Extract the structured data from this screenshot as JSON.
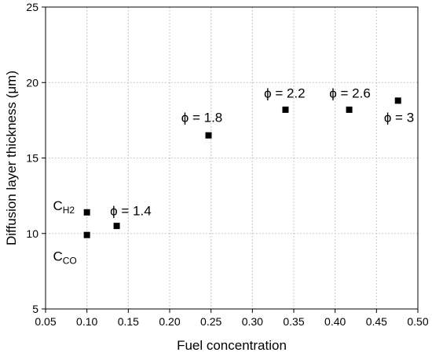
{
  "chart_data": {
    "type": "scatter",
    "xlabel": "Fuel concentration",
    "ylabel": "Diffusion layer thickness (μm)",
    "xlim": [
      0.05,
      0.5
    ],
    "ylim": [
      5,
      25
    ],
    "xticks": [
      "0.05",
      "0.10",
      "0.15",
      "0.20",
      "0.25",
      "0.30",
      "0.35",
      "0.40",
      "0.45",
      "0.50"
    ],
    "yticks": [
      "5",
      "10",
      "15",
      "20",
      "25"
    ],
    "grid": true,
    "points": [
      {
        "x": 0.1,
        "y": 11.4
      },
      {
        "x": 0.1,
        "y": 9.9
      },
      {
        "x": 0.136,
        "y": 10.5
      },
      {
        "x": 0.247,
        "y": 16.5
      },
      {
        "x": 0.34,
        "y": 18.2
      },
      {
        "x": 0.417,
        "y": 18.2
      },
      {
        "x": 0.476,
        "y": 18.8
      }
    ],
    "annotations": [
      {
        "text": "ϕ = 1.4",
        "x": 0.128,
        "y": 11.2
      },
      {
        "text": "ϕ = 1.8",
        "x": 0.214,
        "y": 17.4
      },
      {
        "text": "ϕ = 2.2",
        "x": 0.314,
        "y": 19.0
      },
      {
        "text": "ϕ = 2.6",
        "x": 0.393,
        "y": 19.0
      },
      {
        "text": "ϕ = 3",
        "x": 0.459,
        "y": 17.4
      }
    ],
    "species_labels": [
      {
        "main": "C",
        "sub": "H2",
        "x": 0.059,
        "y": 11.55
      },
      {
        "main": "C",
        "sub": "CO",
        "x": 0.059,
        "y": 8.2
      }
    ]
  }
}
